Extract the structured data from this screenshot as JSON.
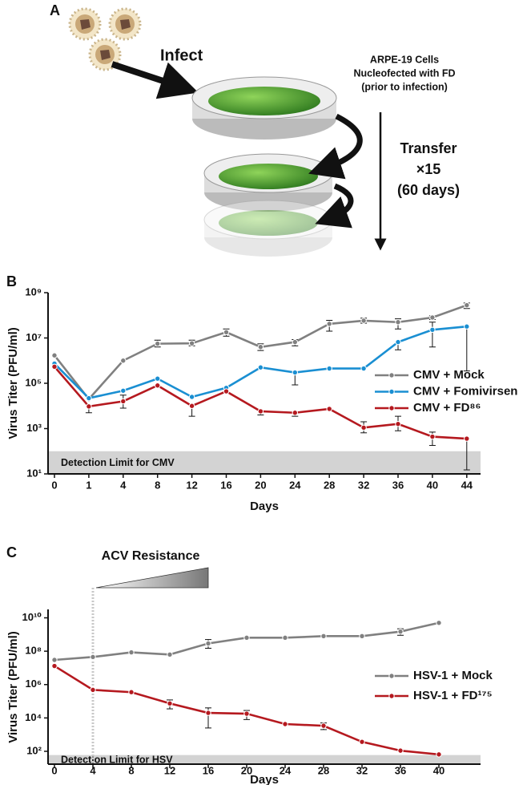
{
  "diagram": {
    "panel": "A",
    "infect": "Infect",
    "cells_label": [
      "ARPE-19 Cells",
      "Nucleofected with FD",
      "(prior to infection)"
    ],
    "transfer": [
      "Transfer",
      "×15",
      "(60 days)"
    ]
  },
  "chart_data": [
    {
      "type": "line",
      "panel": "B",
      "y_label": "Virus Titer (PFU/ml)",
      "x_label": "Days",
      "categories": [
        "0",
        "1",
        "4",
        "8",
        "12",
        "16",
        "20",
        "24",
        "28",
        "32",
        "36",
        "40",
        "44"
      ],
      "log_y": true,
      "ylim": [
        10,
        1000000000
      ],
      "yticks": [
        {
          "value": 10,
          "label": "10¹"
        },
        {
          "value": 1000,
          "label": "10³"
        },
        {
          "value": 100000,
          "label": "10⁵"
        },
        {
          "value": 10000000,
          "label": "10⁷"
        },
        {
          "value": 1000000000,
          "label": "10⁹"
        }
      ],
      "detection_limit": 100,
      "detection_label": "Detection Limit for CMV",
      "series": [
        {
          "name": "CMV + Mock",
          "color": "#808080",
          "values": [
            1700000,
            20000,
            1000000,
            5600000,
            5800000,
            18000000,
            4000000,
            6600000,
            42000000,
            58000000,
            50000000,
            80000000,
            280000000
          ],
          "lower": [
            null,
            null,
            null,
            4000000,
            4500000,
            12000000,
            2800000,
            4500000,
            20000000,
            45000000,
            25000000,
            65000000,
            200000000
          ],
          "upper": [
            null,
            null,
            null,
            8000000,
            8000000,
            25000000,
            5500000,
            8500000,
            60000000,
            75000000,
            70000000,
            95000000,
            350000000
          ]
        },
        {
          "name": "CMV + Fomivirsen",
          "color": "#1a8fd2",
          "values": [
            740000,
            22000,
            47000,
            160000,
            25000,
            63000,
            500000,
            300000,
            450000,
            450000,
            6600000,
            23000000,
            32000000
          ],
          "lower": [
            null,
            null,
            null,
            null,
            null,
            null,
            null,
            85000,
            null,
            null,
            3000000,
            4000000,
            350000
          ],
          "upper": [
            null,
            null,
            null,
            null,
            null,
            null,
            null,
            null,
            null,
            null,
            null,
            50000000,
            null
          ]
        },
        {
          "name": "CMV + FD⁸⁶",
          "color": "#b5191f",
          "values": [
            540000,
            9500,
            16000,
            80000,
            10000,
            44000,
            5800,
            5000,
            7400,
            1100,
            1600,
            440,
            360
          ],
          "lower": [
            null,
            5000,
            8000,
            null,
            3500,
            null,
            4000,
            3500,
            null,
            650,
            800,
            180,
            15
          ],
          "upper": [
            null,
            null,
            30000,
            null,
            null,
            null,
            null,
            null,
            null,
            2000,
            3500,
            700,
            null
          ]
        }
      ]
    },
    {
      "type": "line",
      "panel": "C",
      "y_label": "Virus Titer (PFU/ml)",
      "x_label": "Days",
      "categories": [
        "0",
        "4",
        "8",
        "12",
        "16",
        "20",
        "24",
        "28",
        "32",
        "36",
        "40"
      ],
      "log_y": true,
      "ylim": [
        17,
        32000000000
      ],
      "yticks": [
        {
          "value": 100,
          "label": "10²"
        },
        {
          "value": 10000,
          "label": "10⁴"
        },
        {
          "value": 1000000,
          "label": "10⁶"
        },
        {
          "value": 100000000,
          "label": "10⁸"
        },
        {
          "value": 10000000000,
          "label": "10¹⁰"
        }
      ],
      "detection_limit": 60,
      "detection_label": "Detection Limit for HSV",
      "annotation": {
        "text": "ACV Resistance",
        "start": "4",
        "end": "16"
      },
      "series": [
        {
          "name": "HSV-1 + Mock",
          "color": "#808080",
          "values": [
            30000000,
            45000000,
            85000000,
            63000000,
            290000000,
            640000000,
            640000000,
            800000000,
            800000000,
            1500000000,
            5000000000
          ],
          "lower": [
            null,
            null,
            null,
            null,
            150000000,
            null,
            null,
            null,
            null,
            900000000,
            null
          ],
          "upper": [
            null,
            null,
            null,
            null,
            500000000,
            null,
            null,
            null,
            null,
            2200000000,
            null
          ]
        },
        {
          "name": "HSV-1 + FD¹⁷⁵",
          "color": "#b5191f",
          "values": [
            13000000,
            480000,
            350000,
            74000,
            20000,
            18000,
            4300,
            3400,
            370,
            110,
            65
          ],
          "lower": [
            null,
            null,
            null,
            35000,
            2500,
            8000,
            null,
            2000,
            null,
            null,
            null
          ],
          "upper": [
            null,
            null,
            null,
            120000,
            40000,
            28000,
            null,
            5000,
            null,
            null,
            null
          ]
        }
      ]
    }
  ]
}
